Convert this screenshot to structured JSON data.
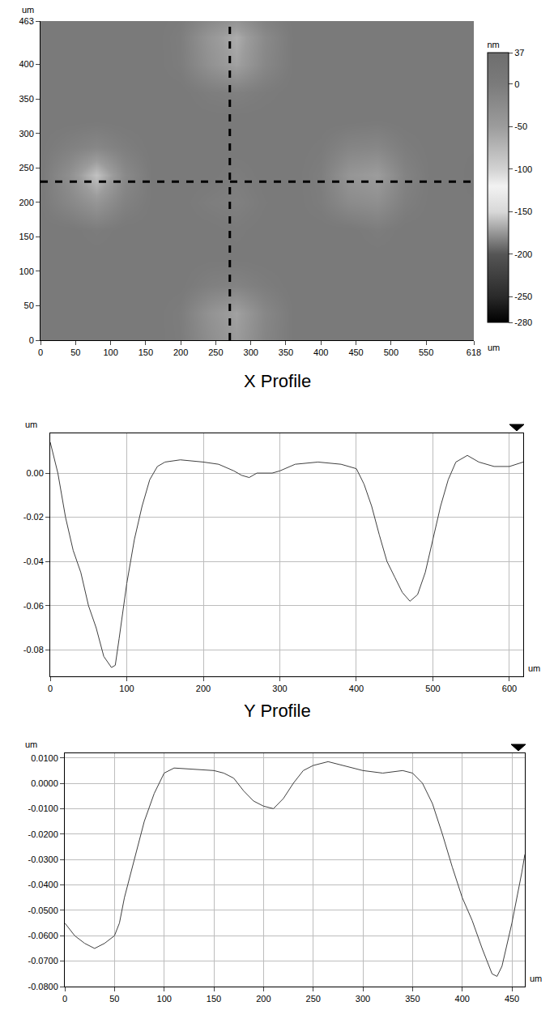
{
  "chart_data": [
    {
      "type": "heatmap",
      "x": [
        0,
        40,
        80,
        120,
        160,
        200,
        240,
        280,
        320,
        360,
        400,
        440,
        480,
        520,
        560,
        600,
        618
      ],
      "y": [
        0,
        40,
        80,
        120,
        160,
        200,
        240,
        280,
        320,
        360,
        400,
        440,
        463
      ],
      "z": [
        [
          4,
          4,
          4,
          4,
          4,
          -2,
          -28,
          -48,
          -15,
          2,
          4,
          4,
          4,
          4,
          4,
          4,
          4
        ],
        [
          4,
          4,
          4,
          4,
          4,
          -3,
          -35,
          -55,
          -18,
          2,
          4,
          4,
          4,
          4,
          4,
          4,
          4
        ],
        [
          4,
          4,
          4,
          4,
          4,
          3,
          -7,
          -12,
          -3,
          4,
          4,
          4,
          4,
          4,
          4,
          4,
          4
        ],
        [
          4,
          4,
          4,
          4,
          4,
          4,
          3,
          3,
          4,
          4,
          4,
          4,
          4,
          4,
          4,
          4,
          4
        ],
        [
          4,
          4,
          -2,
          4,
          4,
          4,
          4,
          0,
          4,
          4,
          4,
          4,
          -3,
          4,
          4,
          4,
          4
        ],
        [
          2,
          -18,
          -40,
          -10,
          3,
          4,
          -4,
          -8,
          1,
          4,
          -3,
          -24,
          -30,
          -6,
          4,
          4,
          4
        ],
        [
          2,
          -30,
          -85,
          -22,
          3,
          4,
          4,
          -3,
          4,
          4,
          -5,
          -40,
          -50,
          -12,
          4,
          4,
          5
        ],
        [
          3,
          -8,
          -18,
          -5,
          4,
          4,
          4,
          4,
          4,
          4,
          0,
          -15,
          -18,
          -3,
          4,
          4,
          4
        ],
        [
          4,
          4,
          3,
          4,
          4,
          4,
          4,
          4,
          4,
          4,
          4,
          4,
          2,
          4,
          4,
          4,
          4
        ],
        [
          4,
          4,
          4,
          4,
          4,
          4,
          -4,
          -8,
          -1,
          4,
          4,
          4,
          4,
          4,
          4,
          4,
          4
        ],
        [
          4,
          4,
          4,
          4,
          4,
          -3,
          -33,
          -55,
          -18,
          2,
          4,
          4,
          4,
          4,
          4,
          4,
          4
        ],
        [
          4,
          4,
          4,
          4,
          4,
          -4,
          -40,
          -65,
          -22,
          2,
          4,
          4,
          4,
          4,
          4,
          4,
          4
        ],
        [
          4,
          4,
          4,
          4,
          4,
          -1,
          -22,
          -38,
          -10,
          3,
          4,
          4,
          4,
          4,
          4,
          4,
          4
        ]
      ],
      "xlim": [
        0,
        618
      ],
      "ylim": [
        0,
        463
      ],
      "xticks": [
        0,
        50,
        100,
        150,
        200,
        250,
        300,
        350,
        400,
        450,
        500,
        550,
        618
      ],
      "yticks": [
        0,
        50,
        100,
        150,
        200,
        250,
        300,
        350,
        400,
        463
      ],
      "zlim": [
        -280,
        37
      ],
      "zticks": [
        37,
        0,
        -50,
        -100,
        -150,
        -200,
        -250,
        -280
      ],
      "colorbar_title": "nm",
      "x_unit": "um",
      "y_unit": "um",
      "profile_lines": {
        "x": 270,
        "y": 230,
        "line_style": "dashed",
        "color": "#000000"
      }
    },
    {
      "type": "line",
      "title": "X Profile",
      "x": [
        0,
        10,
        20,
        30,
        40,
        50,
        60,
        70,
        80,
        85,
        90,
        100,
        110,
        120,
        130,
        140,
        150,
        170,
        200,
        220,
        240,
        250,
        260,
        270,
        290,
        300,
        320,
        350,
        380,
        400,
        410,
        420,
        430,
        440,
        450,
        460,
        470,
        480,
        490,
        500,
        510,
        520,
        530,
        545,
        560,
        580,
        600,
        618
      ],
      "values": [
        0.014,
        0.0,
        -0.02,
        -0.035,
        -0.045,
        -0.06,
        -0.07,
        -0.083,
        -0.088,
        -0.087,
        -0.075,
        -0.05,
        -0.03,
        -0.015,
        -0.003,
        0.003,
        0.005,
        0.006,
        0.005,
        0.004,
        0.001,
        -0.001,
        -0.002,
        0.0,
        0.0,
        0.001,
        0.004,
        0.005,
        0.004,
        0.002,
        -0.005,
        -0.015,
        -0.028,
        -0.04,
        -0.047,
        -0.054,
        -0.058,
        -0.055,
        -0.045,
        -0.03,
        -0.015,
        -0.003,
        0.005,
        0.008,
        0.005,
        0.003,
        0.003,
        0.005
      ],
      "xlim": [
        0,
        618
      ],
      "ylim": [
        -0.092,
        0.018
      ],
      "xticks": [
        0,
        100,
        200,
        300,
        400,
        500,
        600
      ],
      "yticks": [
        {
          "value": 0,
          "label": "0.00"
        },
        -0.02,
        -0.04,
        -0.06,
        -0.08
      ],
      "x_unit": "um",
      "y_unit": "um",
      "grid": true,
      "color": "#404040"
    },
    {
      "type": "line",
      "title": "Y Profile",
      "x": [
        0,
        10,
        20,
        30,
        40,
        50,
        55,
        60,
        70,
        80,
        90,
        100,
        110,
        130,
        150,
        160,
        170,
        180,
        190,
        200,
        210,
        220,
        230,
        240,
        250,
        265,
        280,
        300,
        320,
        340,
        350,
        360,
        370,
        380,
        390,
        400,
        410,
        420,
        430,
        435,
        440,
        450,
        460,
        463
      ],
      "values": [
        -0.055,
        -0.06,
        -0.063,
        -0.065,
        -0.063,
        -0.06,
        -0.055,
        -0.045,
        -0.03,
        -0.015,
        -0.004,
        0.004,
        0.006,
        0.0055,
        0.005,
        0.004,
        0.002,
        -0.003,
        -0.007,
        -0.009,
        -0.01,
        -0.006,
        0.0,
        0.005,
        0.007,
        0.0085,
        0.007,
        0.005,
        0.004,
        0.005,
        0.004,
        0.0,
        -0.008,
        -0.02,
        -0.033,
        -0.045,
        -0.054,
        -0.065,
        -0.075,
        -0.076,
        -0.072,
        -0.055,
        -0.035,
        -0.028
      ],
      "xlim": [
        0,
        463
      ],
      "ylim": [
        -0.08,
        0.0118
      ],
      "xticks": [
        0,
        50,
        100,
        150,
        200,
        250,
        300,
        350,
        400,
        450
      ],
      "yticks": [
        {
          "value": 0.01,
          "label": "0.0100"
        },
        {
          "value": 0,
          "label": "0.0000"
        },
        {
          "value": -0.01,
          "label": "-0.0100"
        },
        {
          "value": -0.02,
          "label": "-0.0200"
        },
        {
          "value": -0.03,
          "label": "-0.0300"
        },
        {
          "value": -0.04,
          "label": "-0.0400"
        },
        {
          "value": -0.05,
          "label": "-0.0500"
        },
        {
          "value": -0.06,
          "label": "-0.0600"
        },
        {
          "value": -0.07,
          "label": "-0.0700"
        },
        {
          "value": -0.08,
          "label": "-0.0800"
        }
      ],
      "x_unit": "um",
      "y_unit": "um",
      "grid": true,
      "color": "#404040"
    }
  ]
}
